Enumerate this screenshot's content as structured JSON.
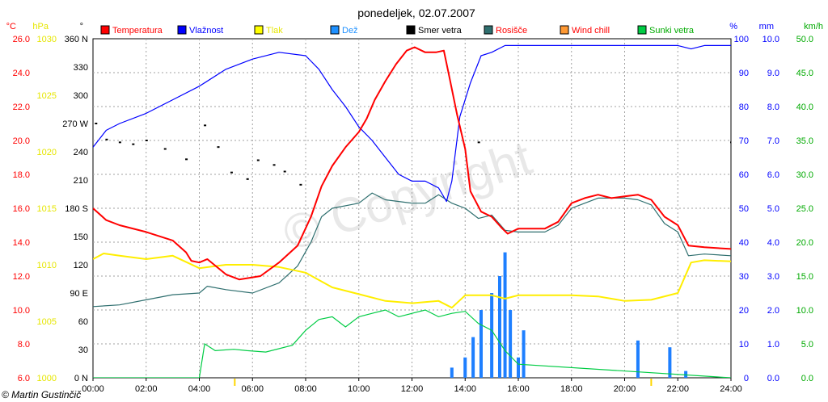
{
  "chart_data": {
    "type": "line",
    "title": "ponedeljek, 02.07.2007",
    "copyright": "© Martin Gustinčič",
    "watermark": "© Copyright",
    "x": {
      "ticks": [
        "00:00",
        "02:00",
        "04:00",
        "06:00",
        "08:00",
        "10:00",
        "12:00",
        "14:00",
        "16:00",
        "18:00",
        "20:00",
        "22:00",
        "24:00"
      ],
      "range": [
        0,
        24
      ],
      "markers": [
        "05:20",
        "21:00"
      ]
    },
    "axes": {
      "temperature": {
        "unit": "°C",
        "ticks": [
          "6.0",
          "8.0",
          "10.0",
          "12.0",
          "14.0",
          "16.0",
          "18.0",
          "20.0",
          "22.0",
          "24.0",
          "26.0"
        ],
        "range": [
          6,
          26
        ],
        "color": "#ff0000"
      },
      "pressure": {
        "unit": "hPa",
        "ticks": [
          "1000",
          "1005",
          "1010",
          "1015",
          "1020",
          "1025",
          "1030"
        ],
        "range": [
          1000,
          1030
        ],
        "color": "#e6e600"
      },
      "direction": {
        "unit": "°",
        "ticks": [
          "0 N",
          "30",
          "60",
          "90 E",
          "120",
          "150",
          "180 S",
          "210",
          "240",
          "270 W",
          "300",
          "330",
          "360 N"
        ],
        "range": [
          0,
          360
        ],
        "color": "#000000"
      },
      "humidity": {
        "unit": "%",
        "ticks": [
          "0",
          "10",
          "20",
          "30",
          "40",
          "50",
          "60",
          "70",
          "80",
          "90",
          "100"
        ],
        "range": [
          0,
          100
        ],
        "color": "#0000ff"
      },
      "rain": {
        "unit": "mm",
        "ticks": [
          "0.0",
          "1.0",
          "2.0",
          "3.0",
          "4.0",
          "5.0",
          "6.0",
          "7.0",
          "8.0",
          "9.0",
          "10.0"
        ],
        "range": [
          0,
          10
        ],
        "color": "#0000ff"
      },
      "wind": {
        "unit": "km/h",
        "ticks": [
          "0.0",
          "5.0",
          "10.0",
          "15.0",
          "20.0",
          "25.0",
          "30.0",
          "35.0",
          "40.0",
          "45.0",
          "50.0"
        ],
        "range": [
          0,
          50
        ],
        "color": "#00aa00"
      }
    },
    "legend": [
      {
        "name": "Temperatura",
        "color": "#ff0000",
        "textColor": "#ff0000"
      },
      {
        "name": "Vlažnost",
        "color": "#0000ff",
        "textColor": "#0000ff"
      },
      {
        "name": "Tlak",
        "color": "#ffff00",
        "textColor": "#e6e600"
      },
      {
        "name": "Dež",
        "color": "#1e90ff",
        "textColor": "#1e90ff"
      },
      {
        "name": "Smer vetra",
        "color": "#000000",
        "textColor": "#000000"
      },
      {
        "name": "Rosišče",
        "color": "#2f6f6f",
        "textColor": "#ff0000"
      },
      {
        "name": "Wind chill",
        "color": "#ff9933",
        "textColor": "#ff0000"
      },
      {
        "name": "Sunki vetra",
        "color": "#00cc44",
        "textColor": "#00aa00"
      }
    ],
    "series": {
      "temperature": [
        [
          0,
          16.0
        ],
        [
          0.5,
          15.3
        ],
        [
          1,
          15.0
        ],
        [
          2,
          14.6
        ],
        [
          3,
          14.1
        ],
        [
          3.5,
          13.4
        ],
        [
          3.7,
          12.9
        ],
        [
          4,
          12.8
        ],
        [
          4.3,
          13.0
        ],
        [
          5,
          12.1
        ],
        [
          5.5,
          11.8
        ],
        [
          6.3,
          12.0
        ],
        [
          7,
          12.8
        ],
        [
          7.7,
          13.8
        ],
        [
          8.2,
          15.5
        ],
        [
          8.6,
          17.3
        ],
        [
          9.0,
          18.5
        ],
        [
          9.5,
          19.6
        ],
        [
          10,
          20.5
        ],
        [
          10.3,
          21.3
        ],
        [
          10.6,
          22.4
        ],
        [
          11,
          23.5
        ],
        [
          11.4,
          24.5
        ],
        [
          11.8,
          25.3
        ],
        [
          12.1,
          25.5
        ],
        [
          12.5,
          25.2
        ],
        [
          12.9,
          25.2
        ],
        [
          13.2,
          25.3
        ],
        [
          13.4,
          23.8
        ],
        [
          13.7,
          21.5
        ],
        [
          14.0,
          19.5
        ],
        [
          14.2,
          17.0
        ],
        [
          14.6,
          15.8
        ],
        [
          15.0,
          15.5
        ],
        [
          15.4,
          14.8
        ],
        [
          15.6,
          14.5
        ],
        [
          16,
          14.8
        ],
        [
          17,
          14.8
        ],
        [
          17.5,
          15.2
        ],
        [
          18,
          16.3
        ],
        [
          18.5,
          16.6
        ],
        [
          19,
          16.8
        ],
        [
          19.5,
          16.6
        ],
        [
          20,
          16.7
        ],
        [
          20.5,
          16.8
        ],
        [
          21,
          16.5
        ],
        [
          21.5,
          15.5
        ],
        [
          22,
          15.0
        ],
        [
          22.4,
          13.8
        ],
        [
          23,
          13.7
        ],
        [
          24,
          13.6
        ]
      ],
      "dew_point": [
        [
          0,
          10.2
        ],
        [
          1,
          10.3
        ],
        [
          2,
          10.6
        ],
        [
          3,
          10.9
        ],
        [
          4,
          11.0
        ],
        [
          4.3,
          11.4
        ],
        [
          5,
          11.2
        ],
        [
          6,
          11.0
        ],
        [
          7,
          11.6
        ],
        [
          7.7,
          12.6
        ],
        [
          8.2,
          14.0
        ],
        [
          8.6,
          15.5
        ],
        [
          9,
          16.0
        ],
        [
          10,
          16.3
        ],
        [
          10.5,
          16.9
        ],
        [
          11,
          16.5
        ],
        [
          12,
          16.3
        ],
        [
          12.5,
          16.3
        ],
        [
          13,
          16.8
        ],
        [
          13.5,
          16.3
        ],
        [
          14,
          16.0
        ],
        [
          14.5,
          15.4
        ],
        [
          15,
          15.6
        ],
        [
          15.5,
          14.7
        ],
        [
          16,
          14.6
        ],
        [
          17,
          14.6
        ],
        [
          17.5,
          15.0
        ],
        [
          18,
          16.0
        ],
        [
          18.5,
          16.3
        ],
        [
          19,
          16.6
        ],
        [
          19.5,
          16.6
        ],
        [
          20,
          16.6
        ],
        [
          20.5,
          16.5
        ],
        [
          21,
          16.2
        ],
        [
          21.5,
          15.1
        ],
        [
          22,
          14.6
        ],
        [
          22.4,
          13.2
        ],
        [
          23,
          13.3
        ],
        [
          24,
          13.2
        ]
      ],
      "humidity": [
        [
          0,
          68
        ],
        [
          0.5,
          73
        ],
        [
          1,
          75
        ],
        [
          2,
          78
        ],
        [
          3,
          82
        ],
        [
          4,
          86
        ],
        [
          5,
          91
        ],
        [
          6,
          94
        ],
        [
          7,
          96
        ],
        [
          8,
          95
        ],
        [
          8.5,
          91
        ],
        [
          9,
          85
        ],
        [
          9.5,
          80
        ],
        [
          10,
          74
        ],
        [
          10.5,
          70
        ],
        [
          11,
          65
        ],
        [
          11.5,
          60
        ],
        [
          12,
          58
        ],
        [
          12.5,
          58
        ],
        [
          13,
          56
        ],
        [
          13.3,
          52
        ],
        [
          13.5,
          58
        ],
        [
          13.8,
          77
        ],
        [
          14.2,
          87
        ],
        [
          14.6,
          95
        ],
        [
          15,
          96
        ],
        [
          15.5,
          98
        ],
        [
          16,
          98
        ],
        [
          18,
          98
        ],
        [
          20,
          98
        ],
        [
          22,
          98
        ],
        [
          22.5,
          97
        ],
        [
          23,
          98
        ],
        [
          24,
          98
        ]
      ],
      "pressure": [
        [
          0,
          1010.5
        ],
        [
          0.4,
          1011.0
        ],
        [
          1,
          1010.8
        ],
        [
          2,
          1010.5
        ],
        [
          3,
          1010.8
        ],
        [
          4,
          1009.7
        ],
        [
          5,
          1010.0
        ],
        [
          6,
          1010.0
        ],
        [
          7,
          1009.8
        ],
        [
          8,
          1009.3
        ],
        [
          9,
          1008.0
        ],
        [
          10,
          1007.4
        ],
        [
          11,
          1006.8
        ],
        [
          12,
          1006.6
        ],
        [
          13,
          1006.8
        ],
        [
          13.5,
          1006.2
        ],
        [
          14,
          1007.3
        ],
        [
          15,
          1007.3
        ],
        [
          15.5,
          1007.0
        ],
        [
          16,
          1007.3
        ],
        [
          17,
          1007.3
        ],
        [
          18,
          1007.3
        ],
        [
          19,
          1007.2
        ],
        [
          20,
          1006.8
        ],
        [
          21,
          1006.9
        ],
        [
          22,
          1007.5
        ],
        [
          22.5,
          1010.2
        ],
        [
          23,
          1010.4
        ],
        [
          24,
          1010.3
        ]
      ],
      "wind_direction": [
        [
          0.1,
          270
        ],
        [
          0.5,
          253
        ],
        [
          1,
          250
        ],
        [
          1.5,
          248
        ],
        [
          2,
          252
        ],
        [
          2.7,
          243
        ],
        [
          3.5,
          232
        ],
        [
          4.2,
          268
        ],
        [
          4.7,
          245
        ],
        [
          5.2,
          218
        ],
        [
          5.8,
          211
        ],
        [
          6.2,
          231
        ],
        [
          6.8,
          226
        ],
        [
          7.2,
          219
        ],
        [
          7.8,
          205
        ],
        [
          14.5,
          250
        ],
        [
          24,
          250
        ]
      ],
      "wind_gusts_kmh": [
        [
          0,
          0
        ],
        [
          4,
          0
        ],
        [
          4.2,
          5.0
        ],
        [
          4.6,
          4.0
        ],
        [
          5.3,
          4.2
        ],
        [
          5.8,
          4.0
        ],
        [
          6.5,
          3.8
        ],
        [
          7.5,
          4.8
        ],
        [
          8,
          7.0
        ],
        [
          8.5,
          8.6
        ],
        [
          9,
          9.0
        ],
        [
          9.5,
          7.5
        ],
        [
          10,
          9.0
        ],
        [
          10.5,
          9.5
        ],
        [
          11,
          10.0
        ],
        [
          11.5,
          9.0
        ],
        [
          12,
          9.5
        ],
        [
          12.5,
          10.0
        ],
        [
          13,
          9.0
        ],
        [
          13.5,
          9.5
        ],
        [
          14,
          9.8
        ],
        [
          14.5,
          8.0
        ],
        [
          15,
          7.0
        ],
        [
          15.5,
          4.0
        ],
        [
          16,
          2.0
        ],
        [
          24,
          0
        ]
      ],
      "rain_mm": [
        [
          13.5,
          0.3
        ],
        [
          14,
          0.6
        ],
        [
          14.3,
          1.2
        ],
        [
          14.6,
          2.0
        ],
        [
          15,
          2.5
        ],
        [
          15.3,
          3.0
        ],
        [
          15.5,
          3.7
        ],
        [
          15.7,
          2.0
        ],
        [
          16,
          0.6
        ],
        [
          16.2,
          1.4
        ],
        [
          20.5,
          1.1
        ],
        [
          21.7,
          0.9
        ],
        [
          22.3,
          0.2
        ]
      ]
    }
  }
}
